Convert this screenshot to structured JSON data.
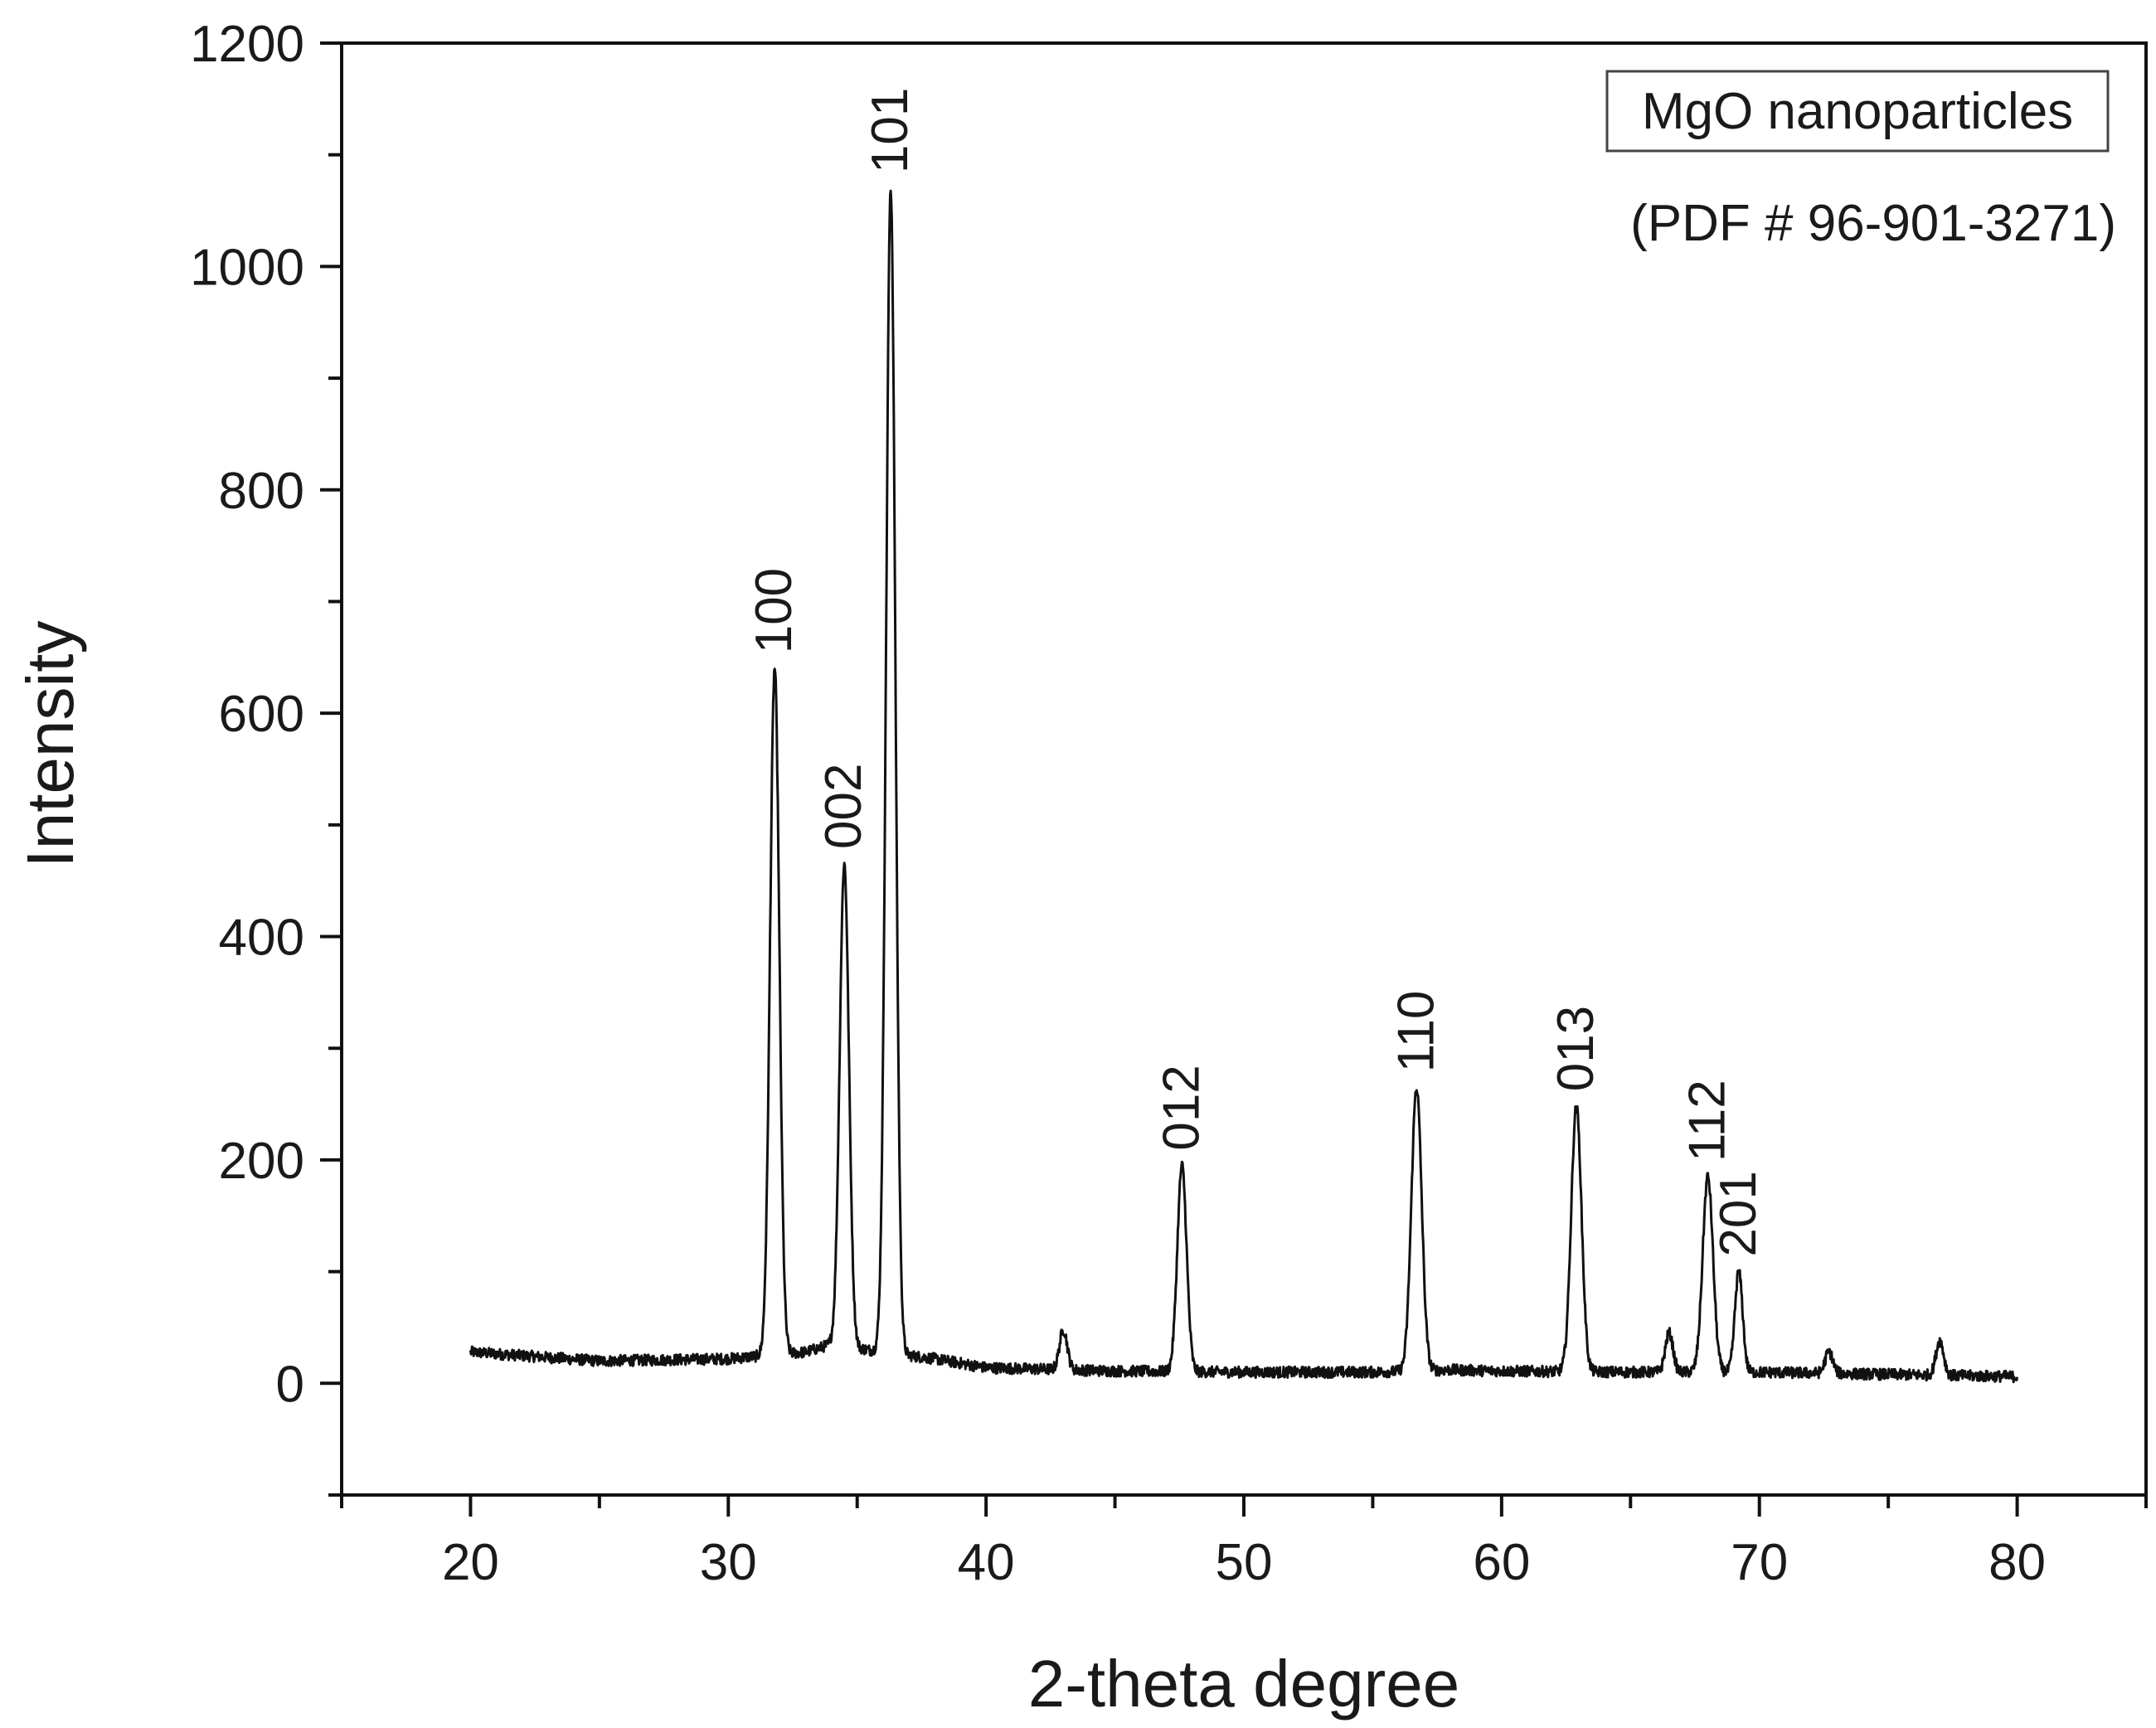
{
  "chart_data": {
    "type": "line",
    "title": "",
    "xlabel": "2-theta degree",
    "ylabel": "Intensity",
    "xlim": [
      15,
      85
    ],
    "ylim": [
      -100,
      1200
    ],
    "x_ticks": [
      20,
      30,
      40,
      50,
      60,
      70,
      80
    ],
    "y_ticks": [
      0,
      200,
      400,
      600,
      800,
      1000,
      1200
    ],
    "legend": {
      "label": "MgO nanoparticles",
      "subtitle": "(PDF # 96-901-3271)",
      "placement": "top-right"
    },
    "colors": {
      "line": "#111111",
      "axis": "#111111",
      "background": "#ffffff"
    },
    "series": [
      {
        "name": "MgO nanoparticles",
        "baseline": [
          [
            20,
            28
          ],
          [
            25,
            20
          ],
          [
            30,
            22
          ],
          [
            31,
            24
          ],
          [
            33,
            28
          ],
          [
            34,
            35
          ],
          [
            36,
            28
          ],
          [
            38,
            22
          ],
          [
            40,
            14
          ],
          [
            45,
            11
          ],
          [
            50,
            10
          ],
          [
            55,
            10
          ],
          [
            58,
            12
          ],
          [
            60,
            11
          ],
          [
            65,
            10
          ],
          [
            70,
            10
          ],
          [
            75,
            8
          ],
          [
            80,
            6
          ]
        ],
        "peaks": [
          {
            "x": 31.8,
            "y": 640,
            "width": 0.18,
            "label": "100"
          },
          {
            "x": 34.5,
            "y": 465,
            "width": 0.18,
            "label": "002"
          },
          {
            "x": 36.3,
            "y": 1070,
            "width": 0.18,
            "label": "101"
          },
          {
            "x": 43.0,
            "y": 48,
            "width": 0.15,
            "label": ""
          },
          {
            "x": 47.6,
            "y": 195,
            "width": 0.18,
            "label": "012"
          },
          {
            "x": 56.7,
            "y": 265,
            "width": 0.2,
            "label": "110"
          },
          {
            "x": 62.9,
            "y": 248,
            "width": 0.2,
            "label": "013"
          },
          {
            "x": 66.5,
            "y": 45,
            "width": 0.15,
            "label": ""
          },
          {
            "x": 68.0,
            "y": 185,
            "width": 0.2,
            "label": "112"
          },
          {
            "x": 69.2,
            "y": 100,
            "width": 0.15,
            "label": "201"
          },
          {
            "x": 72.7,
            "y": 28,
            "width": 0.15,
            "label": ""
          },
          {
            "x": 77.0,
            "y": 38,
            "width": 0.15,
            "label": ""
          }
        ],
        "noise": 5
      }
    ]
  }
}
